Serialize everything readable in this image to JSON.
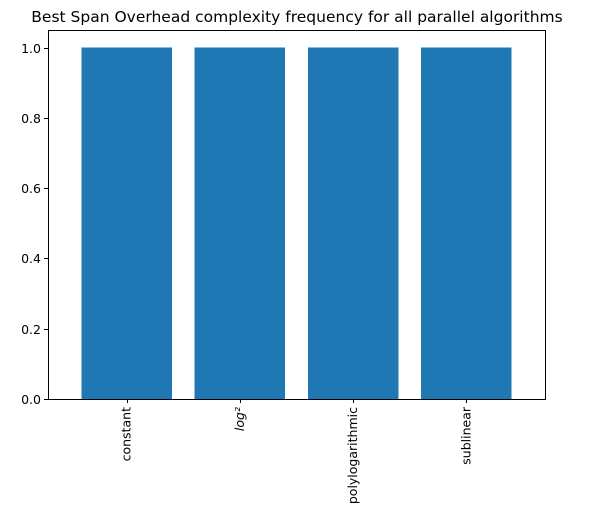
{
  "chart_data": {
    "type": "bar",
    "title": "Best Span Overhead complexity frequency for all parallel algorithms",
    "xlabel": "",
    "ylabel": "",
    "categories": [
      "constant",
      "log²",
      "polylogarithmic",
      "sublinear"
    ],
    "values": [
      1,
      1,
      1,
      1
    ],
    "ylim": [
      0,
      1.05
    ],
    "yticks": [
      0.0,
      0.2,
      0.4,
      0.6,
      0.8,
      1.0
    ],
    "ytick_labels": [
      "0.0",
      "0.2",
      "0.4",
      "0.6",
      "0.8",
      "1.0"
    ],
    "bar_color": "#1f77b4",
    "grid": false,
    "legend": "none"
  }
}
